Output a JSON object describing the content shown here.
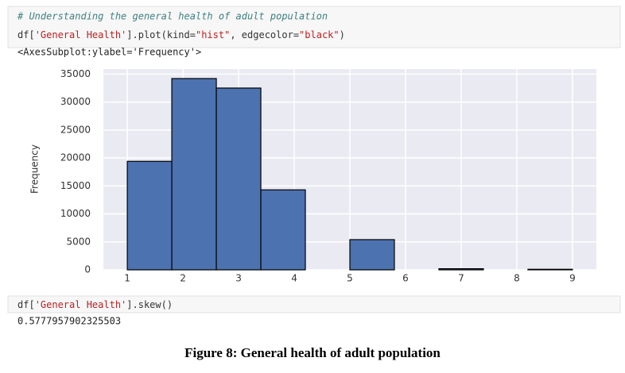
{
  "cells": [
    {
      "comment": "# Understanding the general health of adult population",
      "code": [
        "df[",
        "'General Health'",
        "].plot(kind=",
        "\"hist\"",
        ", edgecolor=",
        "\"black\"",
        ")"
      ],
      "output": "<AxesSubplot:ylabel='Frequency'>"
    },
    {
      "code": [
        "df[",
        "'General Health'",
        "].skew()"
      ],
      "output": "0.5777957902325503"
    }
  ],
  "chart_data": {
    "type": "histogram",
    "ylabel": "Frequency",
    "bins": [
      1,
      1.8,
      2.6,
      3.4,
      4.2,
      5,
      5.8,
      6.6,
      7.4,
      8.2,
      9
    ],
    "values": [
      19400,
      34200,
      32500,
      14300,
      0,
      5400,
      0,
      200,
      0,
      100
    ],
    "color": "#4c72b0",
    "edgecolor": "#000000",
    "xlim": [
      0.57,
      9.43
    ],
    "ylim": [
      0,
      35900
    ],
    "xticks": [
      1,
      2,
      3,
      4,
      5,
      6,
      7,
      8,
      9
    ],
    "yticks": [
      0,
      5000,
      10000,
      15000,
      20000,
      25000,
      30000,
      35000
    ],
    "grid": true
  },
  "caption": "Figure 8: General health of adult population"
}
